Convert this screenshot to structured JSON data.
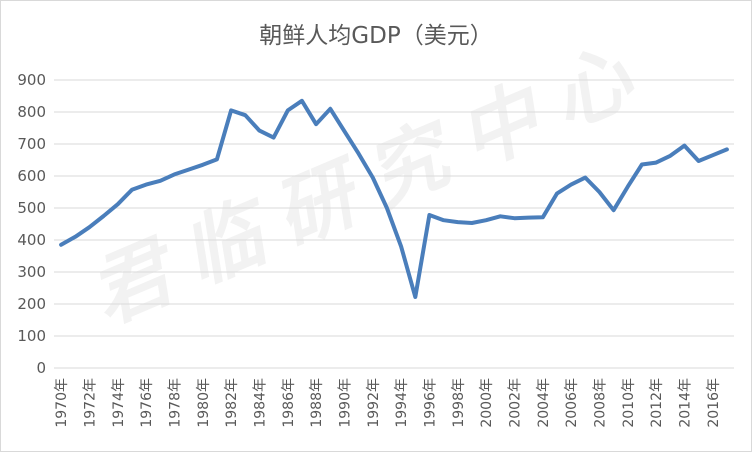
{
  "watermark": "君临研究中心",
  "chart_data": {
    "type": "line",
    "title": "朝鲜人均GDP（美元）",
    "xlabel": "",
    "ylabel": "",
    "ylim": [
      0,
      900
    ],
    "yticks": [
      0,
      100,
      200,
      300,
      400,
      500,
      600,
      700,
      800,
      900
    ],
    "grid": true,
    "legend": "none",
    "color": "#4a7ebb",
    "x": [
      "1970年",
      "1971年",
      "1972年",
      "1973年",
      "1974年",
      "1975年",
      "1976年",
      "1977年",
      "1978年",
      "1979年",
      "1980年",
      "1981年",
      "1982年",
      "1983年",
      "1984年",
      "1985年",
      "1986年",
      "1987年",
      "1988年",
      "1989年",
      "1990年",
      "1991年",
      "1992年",
      "1993年",
      "1994年",
      "1995年",
      "1996年",
      "1997年",
      "1998年",
      "1999年",
      "2000年",
      "2001年",
      "2002年",
      "2003年",
      "2004年",
      "2005年",
      "2006年",
      "2007年",
      "2008年",
      "2009年",
      "2010年",
      "2011年",
      "2012年",
      "2013年",
      "2014年",
      "2015年",
      "2016年",
      "2017年"
    ],
    "x_tick_labels": [
      "1970年",
      "1972年",
      "1974年",
      "1976年",
      "1978年",
      "1980年",
      "1982年",
      "1984年",
      "1986年",
      "1988年",
      "1990年",
      "1992年",
      "1994年",
      "1996年",
      "1998年",
      "2000年",
      "2002年",
      "2004年",
      "2006年",
      "2008年",
      "2010年",
      "2012年",
      "2014年",
      "2016年"
    ],
    "series": [
      {
        "values": [
          385,
          410,
          440,
          475,
          512,
          557,
          573,
          585,
          605,
          620,
          635,
          652,
          805,
          790,
          742,
          720,
          805,
          835,
          762,
          810,
          740,
          670,
          595,
          500,
          380,
          222,
          478,
          462,
          456,
          453,
          462,
          474,
          468,
          470,
          471,
          545,
          573,
          595,
          550,
          493,
          567,
          636,
          642,
          663,
          695,
          647,
          665,
          683
        ]
      }
    ]
  }
}
